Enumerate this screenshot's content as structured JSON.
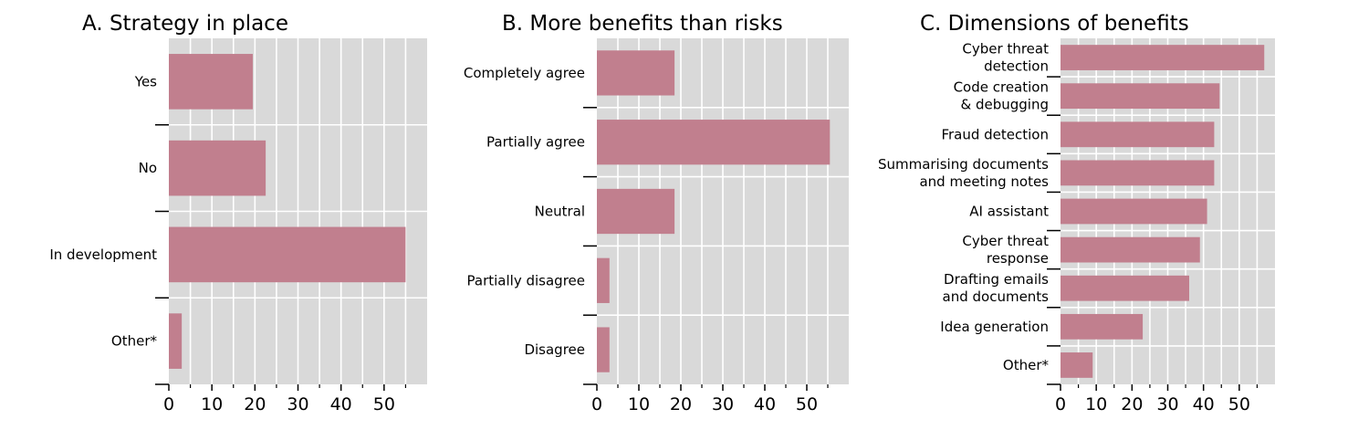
{
  "colors": {
    "bar": "#c17f8e",
    "panel_bg": "#d9d9d9",
    "grid": "#ffffff",
    "axis": "#000000"
  },
  "chart_data": [
    {
      "type": "bar",
      "orientation": "horizontal",
      "title": "A. Strategy in place",
      "categories": [
        "Yes",
        "No",
        "In development",
        "Other*"
      ],
      "values": [
        19.5,
        22.5,
        55,
        3
      ],
      "xlim": [
        0,
        60
      ],
      "xticks": [
        0,
        10,
        20,
        30,
        40,
        50
      ],
      "grid": true
    },
    {
      "type": "bar",
      "orientation": "horizontal",
      "title": "B. More benefits than risks",
      "categories": [
        "Completely agree",
        "Partially agree",
        "Neutral",
        "Partially disagree",
        "Disagree"
      ],
      "values": [
        18.5,
        55.5,
        18.5,
        3,
        3
      ],
      "xlim": [
        0,
        60
      ],
      "xticks": [
        0,
        10,
        20,
        30,
        40,
        50
      ],
      "grid": true
    },
    {
      "type": "bar",
      "orientation": "horizontal",
      "title": "C. Dimensions of benefits",
      "categories": [
        [
          "Cyber threat",
          "detection"
        ],
        [
          "Code creation",
          "& debugging"
        ],
        [
          "Fraud detection"
        ],
        [
          "Summarising documents",
          "and meeting notes"
        ],
        [
          "AI assistant"
        ],
        [
          "Cyber threat",
          "response"
        ],
        [
          "Drafting emails",
          "and documents"
        ],
        [
          "Idea generation"
        ],
        [
          "Other*"
        ]
      ],
      "values": [
        57,
        44.5,
        43,
        43,
        41,
        39,
        36,
        23,
        9
      ],
      "xlim": [
        0,
        60
      ],
      "xticks": [
        0,
        10,
        20,
        30,
        40,
        50
      ],
      "grid": true
    }
  ]
}
